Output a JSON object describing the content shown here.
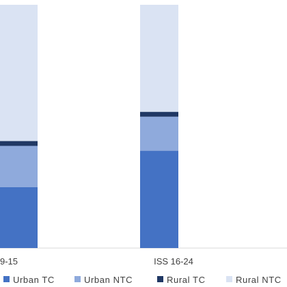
{
  "chart_data": {
    "type": "bar",
    "stacked": true,
    "orientation": "vertical",
    "categories": [
      "9-15",
      "ISS 16-24"
    ],
    "series": [
      {
        "name": "Urban TC",
        "color": "#4472c4",
        "values": [
          25,
          40
        ]
      },
      {
        "name": "Urban NTC",
        "color": "#8faadc",
        "values": [
          17,
          14
        ]
      },
      {
        "name": "Rural TC",
        "color": "#203864",
        "values": [
          2,
          2
        ]
      },
      {
        "name": "Rural NTC",
        "color": "#dae3f3",
        "values": [
          56,
          44
        ]
      }
    ],
    "ylim": [
      0,
      100
    ],
    "grid": false,
    "legend_position": "bottom"
  }
}
